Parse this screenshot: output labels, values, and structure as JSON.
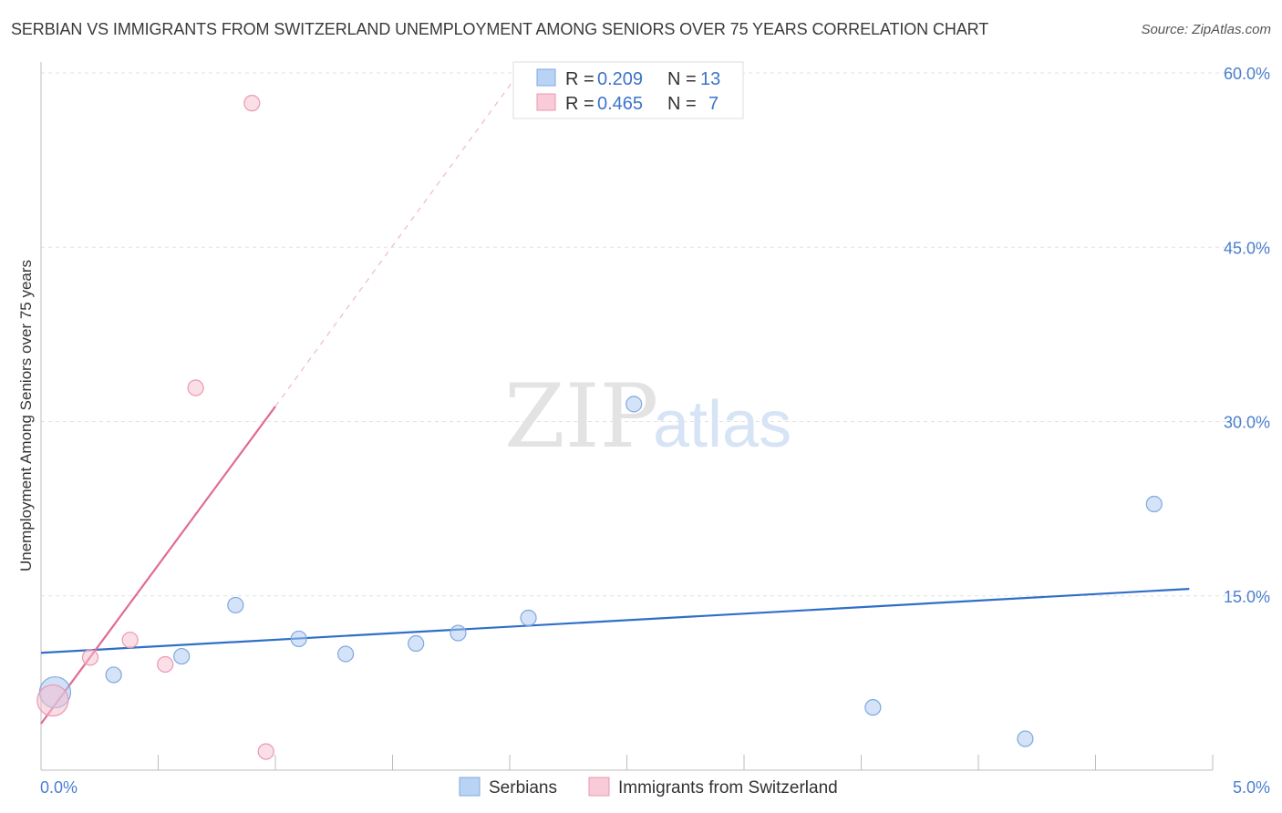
{
  "title": "SERBIAN VS IMMIGRANTS FROM SWITZERLAND UNEMPLOYMENT AMONG SENIORS OVER 75 YEARS CORRELATION CHART",
  "source": "Source: ZipAtlas.com",
  "watermark": {
    "zip": "ZIP",
    "atlas": "atlas"
  },
  "legend": {
    "r_label": "R =",
    "n_label": "N =",
    "rows": [
      {
        "r": "0.209",
        "n": "13"
      },
      {
        "r": "0.465",
        "n": "7"
      }
    ]
  },
  "chart_data": {
    "type": "scatter",
    "title": "SERBIAN VS IMMIGRANTS FROM SWITZERLAND UNEMPLOYMENT AMONG SENIORS OVER 75 YEARS CORRELATION CHART",
    "ylabel": "Unemployment Among Seniors over 75 years",
    "xlabel": "",
    "xlim": [
      0,
      5
    ],
    "ylim": [
      0,
      62
    ],
    "x_ticks": [
      "0.0%",
      "5.0%"
    ],
    "y_ticks": [
      {
        "value": 15,
        "label": "15.0%"
      },
      {
        "value": 30,
        "label": "30.0%"
      },
      {
        "value": 45,
        "label": "45.0%"
      },
      {
        "value": 60,
        "label": "60.0%"
      }
    ],
    "series": [
      {
        "name": "Serbians",
        "color": "#a9c8f0",
        "stroke": "#7ea8e0",
        "line_color": "#2f6fc9",
        "r": 0.209,
        "n": 13,
        "points": [
          {
            "x": 0.06,
            "y": 6.7,
            "big": true
          },
          {
            "x": 0.31,
            "y": 8.2
          },
          {
            "x": 0.6,
            "y": 9.8
          },
          {
            "x": 0.83,
            "y": 14.2
          },
          {
            "x": 1.1,
            "y": 11.3
          },
          {
            "x": 1.3,
            "y": 10.0
          },
          {
            "x": 1.6,
            "y": 10.9
          },
          {
            "x": 1.78,
            "y": 11.8
          },
          {
            "x": 2.08,
            "y": 13.1
          },
          {
            "x": 2.53,
            "y": 31.5
          },
          {
            "x": 3.55,
            "y": 5.4
          },
          {
            "x": 4.2,
            "y": 2.7
          },
          {
            "x": 4.75,
            "y": 22.9
          }
        ],
        "trend": {
          "x0": 0.0,
          "y0": 10.1,
          "x1": 4.9,
          "y1": 15.6,
          "dashed_to": null
        }
      },
      {
        "name": "Immigrants from Switzerland",
        "color": "#f6bfd0",
        "stroke": "#e99ab2",
        "line_color": "#e06b93",
        "r": 0.465,
        "n": 7,
        "points": [
          {
            "x": 0.05,
            "y": 6.0,
            "big": true
          },
          {
            "x": 0.21,
            "y": 9.7
          },
          {
            "x": 0.38,
            "y": 11.2
          },
          {
            "x": 0.53,
            "y": 9.1
          },
          {
            "x": 0.66,
            "y": 32.9
          },
          {
            "x": 0.9,
            "y": 57.4
          },
          {
            "x": 0.96,
            "y": 1.6
          }
        ],
        "trend": {
          "x0": 0.0,
          "y0": 4.0,
          "x1": 1.0,
          "y1": 31.3,
          "dashed_to": {
            "x": 2.05,
            "y": 60.3
          }
        }
      }
    ]
  }
}
